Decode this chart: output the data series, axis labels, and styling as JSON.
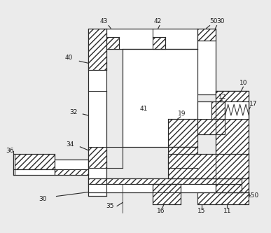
{
  "bg_color": "#ebebeb",
  "line_color": "#2a2a2a",
  "lw": 0.8,
  "hatch": "////",
  "fs": 6.5
}
